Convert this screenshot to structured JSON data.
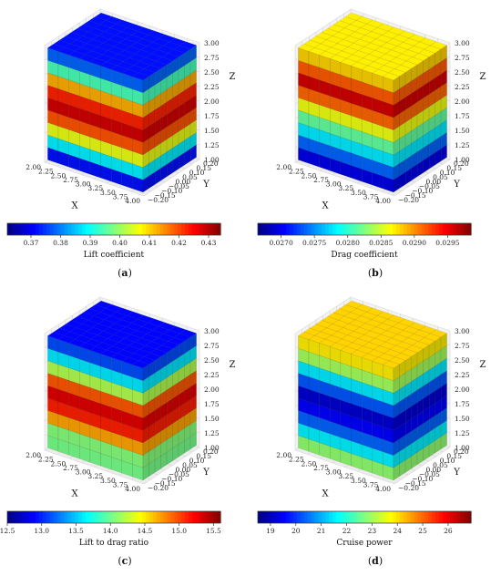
{
  "chart_data": [
    {
      "type": "3d-voxel",
      "panel_label": "(a)",
      "colorbar_label": "Lift coefficient",
      "colorbar_ticks": [
        "0.37",
        "0.38",
        "0.39",
        "0.40",
        "0.41",
        "0.42",
        "0.43"
      ],
      "colorbar_range": [
        0.362,
        0.434
      ],
      "colormap": "jet",
      "x_axis": {
        "label": "X",
        "ticks": [
          "2.00",
          "2.25",
          "2.50",
          "2.75",
          "3.00",
          "3.25",
          "3.50",
          "3.75",
          "4.00"
        ],
        "range": [
          2.0,
          4.0
        ]
      },
      "y_axis": {
        "label": "Y",
        "ticks": [
          "−0.20",
          "−0.15",
          "−0.10",
          "−0.05",
          "0.00",
          "0.05",
          "0.10",
          "0.15",
          "0.20"
        ],
        "range": [
          -0.2,
          0.2
        ]
      },
      "z_axis": {
        "label": "Z",
        "ticks": [
          "1.00",
          "1.25",
          "1.50",
          "1.75",
          "2.00",
          "2.25",
          "2.50",
          "2.75",
          "3.00"
        ],
        "range": [
          1.0,
          3.0
        ]
      },
      "z_layers": [
        {
          "z": 1.0,
          "value": 0.365
        },
        {
          "z": 1.25,
          "value": 0.381
        },
        {
          "z": 1.5,
          "value": 0.402
        },
        {
          "z": 1.75,
          "value": 0.418
        },
        {
          "z": 2.0,
          "value": 0.428
        },
        {
          "z": 2.25,
          "value": 0.422
        },
        {
          "z": 2.5,
          "value": 0.41
        },
        {
          "z": 2.75,
          "value": 0.386
        },
        {
          "z": 3.0,
          "value": 0.372
        }
      ]
    },
    {
      "type": "3d-voxel",
      "panel_label": "(b)",
      "colorbar_label": "Drag coefficient",
      "colorbar_ticks": [
        "0.0270",
        "0.0275",
        "0.0280",
        "0.0285",
        "0.0290",
        "0.0295"
      ],
      "colorbar_range": [
        0.02665,
        0.02985
      ],
      "colormap": "jet",
      "x_axis": {
        "label": "X",
        "ticks": [
          "2.00",
          "2.25",
          "2.50",
          "2.75",
          "3.00",
          "3.25",
          "3.50",
          "3.75",
          "4.00"
        ],
        "range": [
          2.0,
          4.0
        ]
      },
      "y_axis": {
        "label": "Y",
        "ticks": [
          "−0.20",
          "−0.15",
          "−0.10",
          "−0.05",
          "0.00",
          "0.05",
          "0.10",
          "0.15",
          "0.20"
        ],
        "range": [
          -0.2,
          0.2
        ]
      },
      "z_axis": {
        "label": "Z",
        "ticks": [
          "1.00",
          "1.25",
          "1.50",
          "1.75",
          "2.00",
          "2.25",
          "2.50",
          "2.75",
          "3.00"
        ],
        "range": [
          1.0,
          3.0
        ]
      },
      "z_layers": [
        {
          "z": 1.0,
          "value": 0.0268
        },
        {
          "z": 1.25,
          "value": 0.0272
        },
        {
          "z": 1.5,
          "value": 0.0277
        },
        {
          "z": 1.75,
          "value": 0.0281
        },
        {
          "z": 2.0,
          "value": 0.0286
        },
        {
          "z": 2.25,
          "value": 0.0292
        },
        {
          "z": 2.5,
          "value": 0.0297
        },
        {
          "z": 2.75,
          "value": 0.0289
        },
        {
          "z": 3.0,
          "value": 0.0287
        }
      ]
    },
    {
      "type": "3d-voxel",
      "panel_label": "(c)",
      "colorbar_label": "Lift to drag ratio",
      "colorbar_ticks": [
        "12.5",
        "13.0",
        "13.5",
        "14.0",
        "14.5",
        "15.0",
        "15.5"
      ],
      "colorbar_range": [
        12.5,
        15.6
      ],
      "colormap": "jet",
      "x_axis": {
        "label": "X",
        "ticks": [
          "2.00",
          "2.25",
          "2.50",
          "2.75",
          "3.00",
          "3.25",
          "3.50",
          "3.75",
          "4.00"
        ],
        "range": [
          2.0,
          4.0
        ]
      },
      "y_axis": {
        "label": "Y",
        "ticks": [
          "−0.20",
          "−0.15",
          "−0.10",
          "−0.05",
          "0.00",
          "0.05",
          "0.10",
          "0.15",
          "0.20"
        ],
        "range": [
          -0.2,
          0.2
        ]
      },
      "z_axis": {
        "label": "Z",
        "ticks": [
          "1.00",
          "1.25",
          "1.50",
          "1.75",
          "2.00",
          "2.25",
          "2.50",
          "2.75",
          "3.00"
        ],
        "range": [
          1.0,
          3.0
        ]
      },
      "z_layers": [
        {
          "z": 1.0,
          "value": 14.2
        },
        {
          "z": 1.25,
          "value": 13.8
        },
        {
          "z": 1.5,
          "value": 14.6
        },
        {
          "z": 1.75,
          "value": 15.1
        },
        {
          "z": 2.0,
          "value": 15.3
        },
        {
          "z": 2.25,
          "value": 14.9
        },
        {
          "z": 2.5,
          "value": 14.0
        },
        {
          "z": 2.75,
          "value": 13.4
        },
        {
          "z": 3.0,
          "value": 12.9
        }
      ]
    },
    {
      "type": "3d-voxel",
      "panel_label": "(d)",
      "colorbar_label": "Cruise power",
      "colorbar_ticks": [
        "19",
        "20",
        "21",
        "22",
        "23",
        "24",
        "25",
        "26"
      ],
      "colorbar_range": [
        18.5,
        26.9
      ],
      "colormap": "jet",
      "x_axis": {
        "label": "X",
        "ticks": [
          "2.00",
          "2.25",
          "2.50",
          "2.75",
          "3.00",
          "3.25",
          "3.50",
          "3.75",
          "4.00"
        ],
        "range": [
          2.0,
          4.0
        ]
      },
      "y_axis": {
        "label": "Y",
        "ticks": [
          "−0.20",
          "−0.15",
          "−0.10",
          "−0.05",
          "0.00",
          "0.05",
          "0.10",
          "0.15",
          "0.20"
        ],
        "range": [
          -0.2,
          0.2
        ]
      },
      "z_axis": {
        "label": "Z",
        "ticks": [
          "1.00",
          "1.25",
          "1.50",
          "1.75",
          "2.00",
          "2.25",
          "2.50",
          "2.75",
          "3.00"
        ],
        "range": [
          1.0,
          3.0
        ]
      },
      "z_layers": [
        {
          "z": 1.0,
          "value": 23.5
        },
        {
          "z": 1.25,
          "value": 22.0
        },
        {
          "z": 1.5,
          "value": 20.6
        },
        {
          "z": 1.75,
          "value": 19.6
        },
        {
          "z": 2.0,
          "value": 19.2
        },
        {
          "z": 2.25,
          "value": 20.4
        },
        {
          "z": 2.5,
          "value": 21.8
        },
        {
          "z": 2.75,
          "value": 23.6
        },
        {
          "z": 3.0,
          "value": 24.1
        }
      ]
    }
  ]
}
